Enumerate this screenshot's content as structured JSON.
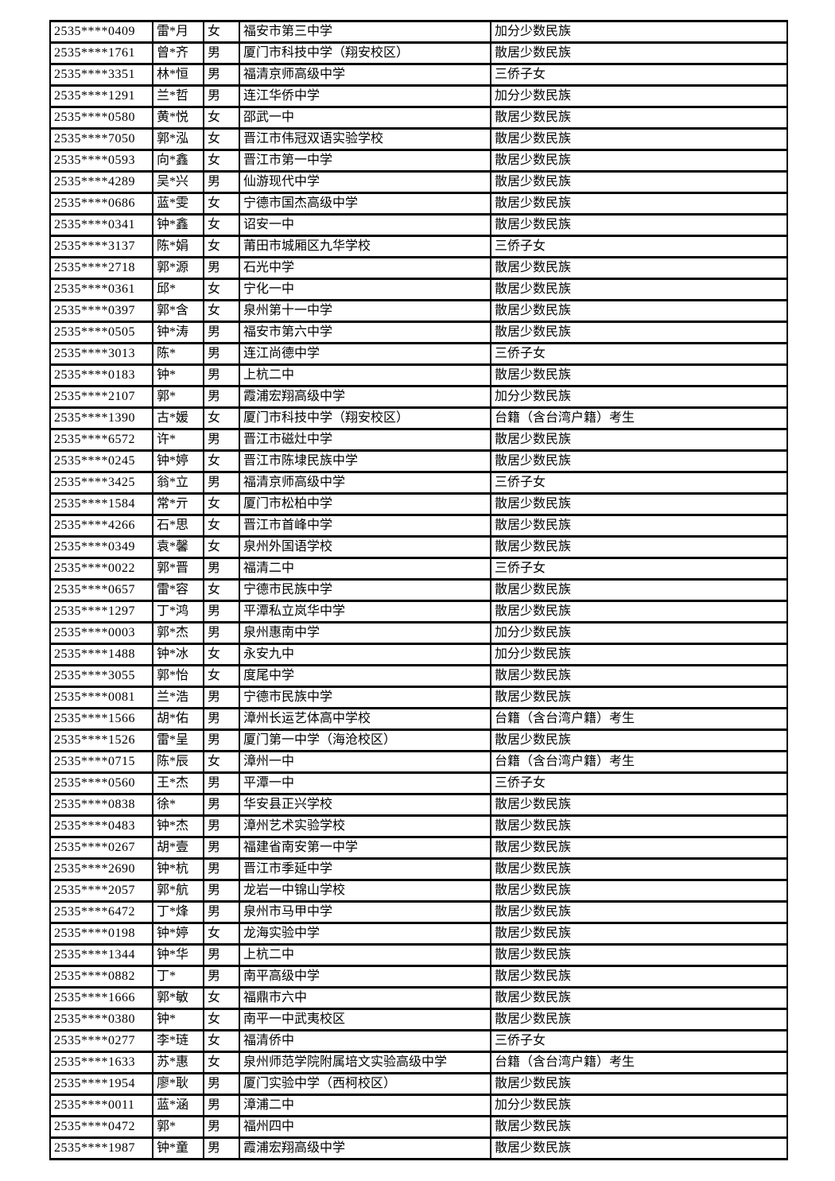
{
  "table": {
    "column_keys": [
      "id",
      "name",
      "gender",
      "school",
      "category"
    ],
    "rows": [
      [
        "2535****0409",
        "雷*月",
        "女",
        "福安市第三中学",
        "加分少数民族"
      ],
      [
        "2535****1761",
        "曾*齐",
        "男",
        "厦门市科技中学（翔安校区）",
        "散居少数民族"
      ],
      [
        "2535****3351",
        "林*恒",
        "男",
        "福清京师高级中学",
        "三侨子女"
      ],
      [
        "2535****1291",
        "兰*哲",
        "男",
        "连江华侨中学",
        "加分少数民族"
      ],
      [
        "2535****0580",
        "黄*悦",
        "女",
        "邵武一中",
        "散居少数民族"
      ],
      [
        "2535****7050",
        "郭*泓",
        "女",
        "晋江市伟冠双语实验学校",
        "散居少数民族"
      ],
      [
        "2535****0593",
        "向*鑫",
        "女",
        "晋江市第一中学",
        "散居少数民族"
      ],
      [
        "2535****4289",
        "吴*兴",
        "男",
        "仙游现代中学",
        "散居少数民族"
      ],
      [
        "2535****0686",
        "蓝*雯",
        "女",
        "宁德市国杰高级中学",
        "散居少数民族"
      ],
      [
        "2535****0341",
        "钟*鑫",
        "女",
        "诏安一中",
        "散居少数民族"
      ],
      [
        "2535****3137",
        "陈*娟",
        "女",
        "莆田市城厢区九华学校",
        "三侨子女"
      ],
      [
        "2535****2718",
        "郭*源",
        "男",
        "石光中学",
        "散居少数民族"
      ],
      [
        "2535****0361",
        "邱*",
        "女",
        "宁化一中",
        "散居少数民族"
      ],
      [
        "2535****0397",
        "郭*含",
        "女",
        "泉州第十一中学",
        "散居少数民族"
      ],
      [
        "2535****0505",
        "钟*涛",
        "男",
        "福安市第六中学",
        "散居少数民族"
      ],
      [
        "2535****3013",
        "陈*",
        "男",
        "连江尚德中学",
        "三侨子女"
      ],
      [
        "2535****0183",
        "钟*",
        "男",
        "上杭二中",
        "散居少数民族"
      ],
      [
        "2535****2107",
        "郭*",
        "男",
        "霞浦宏翔高级中学",
        "加分少数民族"
      ],
      [
        "2535****1390",
        "古*媛",
        "女",
        "厦门市科技中学（翔安校区）",
        "台籍（含台湾户籍）考生"
      ],
      [
        "2535****6572",
        "许*",
        "男",
        "晋江市磁灶中学",
        "散居少数民族"
      ],
      [
        "2535****0245",
        "钟*婷",
        "女",
        "晋江市陈埭民族中学",
        "散居少数民族"
      ],
      [
        "2535****3425",
        "翁*立",
        "男",
        "福清京师高级中学",
        "三侨子女"
      ],
      [
        "2535****1584",
        "常*亓",
        "女",
        "厦门市松柏中学",
        "散居少数民族"
      ],
      [
        "2535****4266",
        "石*思",
        "女",
        "晋江市首峰中学",
        "散居少数民族"
      ],
      [
        "2535****0349",
        "袁*馨",
        "女",
        "泉州外国语学校",
        "散居少数民族"
      ],
      [
        "2535****0022",
        "郭*晋",
        "男",
        "福清二中",
        "三侨子女"
      ],
      [
        "2535****0657",
        "雷*容",
        "女",
        "宁德市民族中学",
        "散居少数民族"
      ],
      [
        "2535****1297",
        "丁*鸿",
        "男",
        "平潭私立岚华中学",
        "散居少数民族"
      ],
      [
        "2535****0003",
        "郭*杰",
        "男",
        "泉州惠南中学",
        "加分少数民族"
      ],
      [
        "2535****1488",
        "钟*冰",
        "女",
        "永安九中",
        "加分少数民族"
      ],
      [
        "2535****3055",
        "郭*怡",
        "女",
        "度尾中学",
        "散居少数民族"
      ],
      [
        "2535****0081",
        "兰*浩",
        "男",
        "宁德市民族中学",
        "散居少数民族"
      ],
      [
        "2535****1566",
        "胡*佑",
        "男",
        "漳州长运艺体高中学校",
        "台籍（含台湾户籍）考生"
      ],
      [
        "2535****1526",
        "雷*呈",
        "男",
        "厦门第一中学（海沧校区）",
        "散居少数民族"
      ],
      [
        "2535****0715",
        "陈*辰",
        "女",
        "漳州一中",
        "台籍（含台湾户籍）考生"
      ],
      [
        "2535****0560",
        "王*杰",
        "男",
        "平潭一中",
        "三侨子女"
      ],
      [
        "2535****0838",
        "徐*",
        "男",
        "华安县正兴学校",
        "散居少数民族"
      ],
      [
        "2535****0483",
        "钟*杰",
        "男",
        "漳州艺术实验学校",
        "散居少数民族"
      ],
      [
        "2535****0267",
        "胡*壹",
        "男",
        "福建省南安第一中学",
        "散居少数民族"
      ],
      [
        "2535****2690",
        "钟*杭",
        "男",
        "晋江市季延中学",
        "散居少数民族"
      ],
      [
        "2535****2057",
        "郭*航",
        "男",
        "龙岩一中锦山学校",
        "散居少数民族"
      ],
      [
        "2535****6472",
        "丁*烽",
        "男",
        "泉州市马甲中学",
        "散居少数民族"
      ],
      [
        "2535****0198",
        "钟*婷",
        "女",
        "龙海实验中学",
        "散居少数民族"
      ],
      [
        "2535****1344",
        "钟*华",
        "男",
        "上杭二中",
        "散居少数民族"
      ],
      [
        "2535****0882",
        "丁*",
        "男",
        "南平高级中学",
        "散居少数民族"
      ],
      [
        "2535****1666",
        "郭*敏",
        "女",
        "福鼎市六中",
        "散居少数民族"
      ],
      [
        "2535****0380",
        "钟*",
        "女",
        "南平一中武夷校区",
        "散居少数民族"
      ],
      [
        "2535****0277",
        "李*琏",
        "女",
        "福清侨中",
        "三侨子女"
      ],
      [
        "2535****1633",
        "苏*惠",
        "女",
        "泉州师范学院附属培文实验高级中学",
        "台籍（含台湾户籍）考生"
      ],
      [
        "2535****1954",
        "廖*耿",
        "男",
        "厦门实验中学（西柯校区）",
        "散居少数民族"
      ],
      [
        "2535****0011",
        "蓝*涵",
        "男",
        "漳浦二中",
        "加分少数民族"
      ],
      [
        "2535****0472",
        "郭*",
        "男",
        "福州四中",
        "散居少数民族"
      ],
      [
        "2535****1987",
        "钟*童",
        "男",
        "霞浦宏翔高级中学",
        "散居少数民族"
      ]
    ]
  }
}
